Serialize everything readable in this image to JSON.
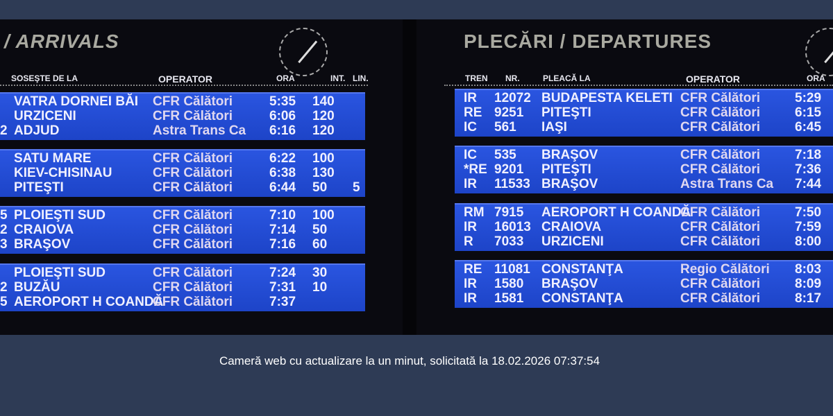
{
  "arrivals": {
    "title": "/ ARRIVALS",
    "headers": {
      "from": "SOSEŞTE DE LA",
      "operator": "OPERATOR",
      "time": "ORA",
      "int": "INT.",
      "line": "LIN."
    },
    "rows": [
      {
        "p": "",
        "dest": "VATRA DORNEI BĂI",
        "op": "CFR Călători",
        "time": "5:35",
        "int": "140",
        "line": ""
      },
      {
        "p": "",
        "dest": "URZICENI",
        "op": "CFR Călători",
        "time": "6:06",
        "int": "120",
        "line": ""
      },
      {
        "p": "2",
        "dest": "ADJUD",
        "op": "Astra Trans Ca",
        "time": "6:16",
        "int": "120",
        "line": ""
      },
      {
        "p": "",
        "dest": "SATU MARE",
        "op": "CFR Călători",
        "time": "6:22",
        "int": "100",
        "line": ""
      },
      {
        "p": "",
        "dest": "KIEV-CHISINAU",
        "op": "CFR Călători",
        "time": "6:38",
        "int": "130",
        "line": ""
      },
      {
        "p": "",
        "dest": "PITEŞTI",
        "op": "CFR Călători",
        "time": "6:44",
        "int": "50",
        "line": "5"
      },
      {
        "p": "5",
        "dest": "PLOIEŞTI SUD",
        "op": "CFR Călători",
        "time": "7:10",
        "int": "100",
        "line": ""
      },
      {
        "p": "2",
        "dest": "CRAIOVA",
        "op": "CFR Călători",
        "time": "7:14",
        "int": "50",
        "line": ""
      },
      {
        "p": "3",
        "dest": "BRAŞOV",
        "op": "CFR Călători",
        "time": "7:16",
        "int": "60",
        "line": ""
      },
      {
        "p": "",
        "dest": "PLOIEŞTI SUD",
        "op": "CFR Călători",
        "time": "7:24",
        "int": "30",
        "line": ""
      },
      {
        "p": "2",
        "dest": "BUZĂU",
        "op": "CFR Călători",
        "time": "7:31",
        "int": "10",
        "line": ""
      },
      {
        "p": "5",
        "dest": "AEROPORT H COANDĂ",
        "op": "CFR Călători",
        "time": "7:37",
        "int": "",
        "line": ""
      }
    ]
  },
  "departures": {
    "title": "PLECĂRI / DEPARTURES",
    "headers": {
      "train": "TREN",
      "nr": "NR.",
      "dest": "PLEACĂ LA",
      "operator": "OPERATOR",
      "time": "ORA"
    },
    "rows": [
      {
        "type": "IR",
        "nr": "12072",
        "dest": "BUDAPESTA KELETI",
        "op": "CFR Călători",
        "time": "5:29"
      },
      {
        "type": "RE",
        "nr": "9251",
        "dest": "PITEŞTI",
        "op": "CFR Călători",
        "time": "6:15"
      },
      {
        "type": "IC",
        "nr": "561",
        "dest": "IAŞI",
        "op": "CFR Călători",
        "time": "6:45"
      },
      {
        "type": "IC",
        "nr": "535",
        "dest": "BRAŞOV",
        "op": "CFR Călători",
        "time": "7:18"
      },
      {
        "type": "*RE",
        "nr": "9201",
        "dest": "PITEŞTI",
        "op": "CFR Călători",
        "time": "7:36"
      },
      {
        "type": "IR",
        "nr": "11533",
        "dest": "BRAŞOV",
        "op": "Astra Trans Ca",
        "time": "7:44"
      },
      {
        "type": "RM",
        "nr": "7915",
        "dest": "AEROPORT H COANDĂ",
        "op": "CFR Călători",
        "time": "7:50"
      },
      {
        "type": "IR",
        "nr": "16013",
        "dest": "CRAIOVA",
        "op": "CFR Călători",
        "time": "7:59"
      },
      {
        "type": "R",
        "nr": "7033",
        "dest": "URZICENI",
        "op": "CFR Călători",
        "time": "8:00"
      },
      {
        "type": "RE",
        "nr": "11081",
        "dest": "CONSTANŢA",
        "op": "Regio Călători",
        "time": "8:03"
      },
      {
        "type": "IR",
        "nr": "1580",
        "dest": "BRAŞOV",
        "op": "CFR Călători",
        "time": "8:09"
      },
      {
        "type": "IR",
        "nr": "1581",
        "dest": "CONSTANŢA",
        "op": "CFR Călători",
        "time": "8:17"
      }
    ]
  },
  "caption": "Cameră web cu actualizare la un minut, solicitată la 18.02.2026 07:37:54"
}
